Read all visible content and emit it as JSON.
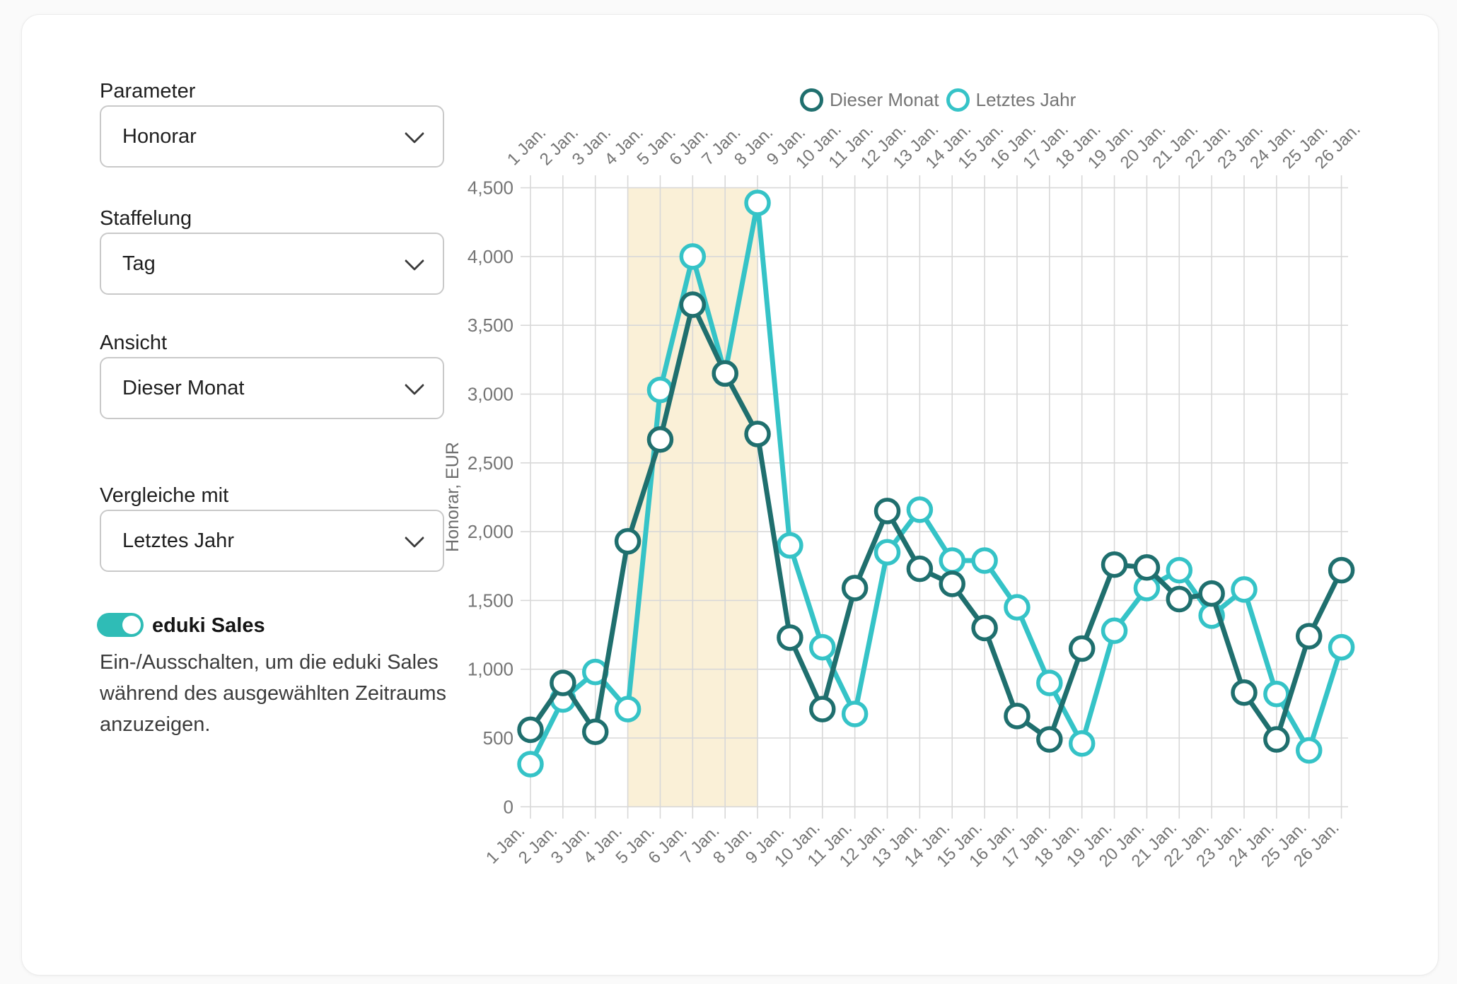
{
  "sidebar": {
    "groups": [
      {
        "label": "Parameter",
        "value": "Honorar"
      },
      {
        "label": "Staffelung",
        "value": "Tag"
      },
      {
        "label": "Ansicht",
        "value": "Dieser Monat"
      },
      {
        "label": "Vergleiche mit",
        "value": "Letztes Jahr"
      }
    ],
    "toggle": {
      "label": "eduki Sales",
      "state": "on",
      "color": "#2fbcb6",
      "description": "Ein-/Ausschalten, um die eduki Sales während des ausgewählten Zeitraums anzuzeigen."
    }
  },
  "legend": [
    {
      "label": "Dieser Monat",
      "color": "#1f6f6e"
    },
    {
      "label": "Letztes Jahr",
      "color": "#35c3c7"
    }
  ],
  "chart_data": {
    "type": "line",
    "title": "",
    "ylabel": "Honorar, EUR",
    "ylim": [
      0,
      4500
    ],
    "ytick_step": 500,
    "grid": true,
    "legend_position": "top",
    "x_labels": [
      "1 Jan.",
      "2 Jan.",
      "3 Jan.",
      "4 Jan.",
      "5 Jan.",
      "6 Jan.",
      "7 Jan.",
      "8 Jan.",
      "9 Jan.",
      "10 Jan.",
      "11 Jan.",
      "12 Jan.",
      "13 Jan.",
      "14 Jan.",
      "15 Jan.",
      "16 Jan.",
      "17 Jan.",
      "18 Jan.",
      "19 Jan.",
      "20 Jan.",
      "21 Jan.",
      "22 Jan.",
      "23 Jan.",
      "24 Jan.",
      "25 Jan.",
      "26 Jan."
    ],
    "highlight_band": {
      "from": "4 Jan.",
      "to": "8 Jan.",
      "color": "#faf0d7"
    },
    "series": [
      {
        "name": "Letztes Jahr",
        "color": "#35c3c7",
        "values": [
          310,
          780,
          980,
          710,
          3030,
          4000,
          3150,
          4390,
          1900,
          1160,
          675,
          1850,
          2160,
          1790,
          1790,
          1450,
          900,
          460,
          1280,
          1590,
          1720,
          1390,
          1580,
          820,
          410,
          1160
        ]
      },
      {
        "name": "Dieser Monat",
        "color": "#1f6f6e",
        "values": [
          560,
          900,
          545,
          1930,
          2670,
          3650,
          3150,
          2710,
          1230,
          710,
          1590,
          2150,
          1730,
          1620,
          1300,
          660,
          490,
          1150,
          1760,
          1740,
          1510,
          1550,
          830,
          490,
          1240,
          1720
        ]
      }
    ],
    "axis_text_color": "#757575",
    "gridline_color": "#d8d8d8"
  }
}
